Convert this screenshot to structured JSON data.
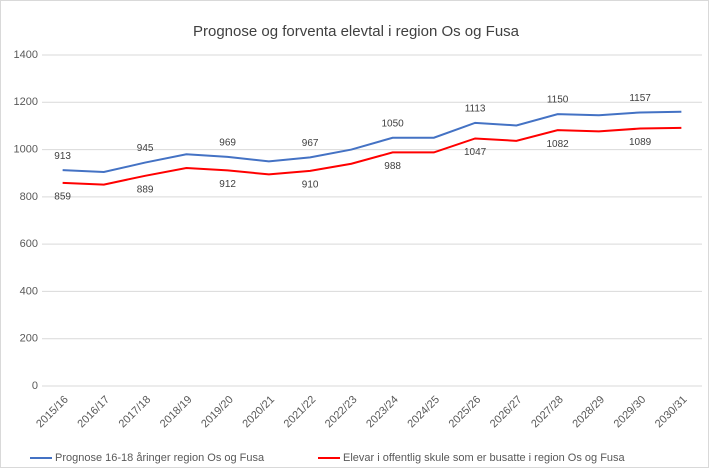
{
  "chart_data": {
    "type": "line",
    "title": "Prognose og forventa elevtal i region Os og Fusa",
    "categories": [
      "2015/16",
      "2016/17",
      "2017/18",
      "2018/19",
      "2019/20",
      "2020/21",
      "2021/22",
      "2022/23",
      "2023/24",
      "2024/25",
      "2025/26",
      "2026/27",
      "2027/28",
      "2028/29",
      "2029/30",
      "2030/31"
    ],
    "series": [
      {
        "name": "Prognose 16-18 åringer region Os og Fusa",
        "color": "#4472c4",
        "values": [
          913,
          905,
          945,
          980,
          969,
          950,
          967,
          1000,
          1050,
          1050,
          1113,
          1102,
          1150,
          1145,
          1157,
          1160
        ],
        "value_labels": [
          "913",
          null,
          "945",
          null,
          "969",
          null,
          "967",
          null,
          "1050",
          null,
          "1113",
          null,
          "1150",
          null,
          "1157",
          null
        ]
      },
      {
        "name": "Elevar i offentlig skule som er busatte i region Os og Fusa",
        "color": "#ff0000",
        "values": [
          859,
          852,
          889,
          922,
          912,
          895,
          910,
          940,
          988,
          988,
          1047,
          1037,
          1082,
          1077,
          1089,
          1092
        ],
        "value_labels": [
          "859",
          null,
          "889",
          null,
          "912",
          null,
          "910",
          null,
          "988",
          null,
          "1047",
          null,
          "1082",
          null,
          "1089",
          null
        ]
      }
    ],
    "ylim": [
      0,
      1400
    ],
    "yticks": [
      0,
      200,
      400,
      600,
      800,
      1000,
      1200,
      1400
    ],
    "grid": true,
    "legend": "bottom"
  }
}
